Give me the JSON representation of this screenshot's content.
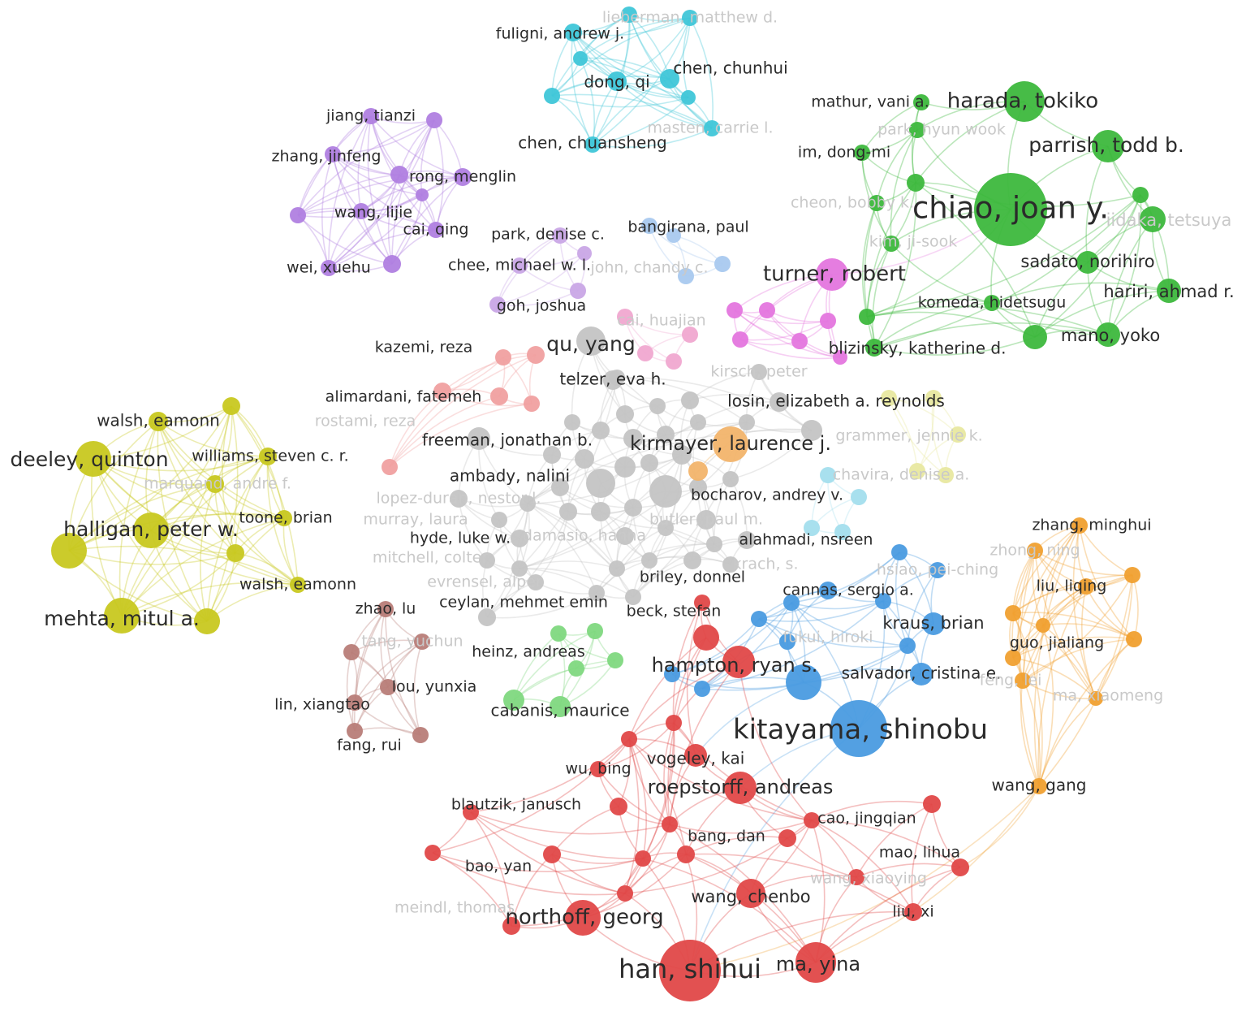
{
  "clusters": [
    {
      "color": "#3fc6d8",
      "nodes": [
        {
          "label": "fuligni, andrew j."
        },
        {
          "label": "dong, qi"
        },
        {
          "label": "chen, chunhui"
        },
        {
          "label": "chen, chuansheng"
        },
        {
          "label": "lieberman, matthew d."
        },
        {
          "label": "masten, carrie l."
        }
      ]
    },
    {
      "color": "#b07fe0",
      "nodes": [
        {
          "label": "jiang, tianzi"
        },
        {
          "label": "zhang, jinfeng"
        },
        {
          "label": "rong, menglin"
        },
        {
          "label": "wang, lijie"
        },
        {
          "label": "cai, qing"
        },
        {
          "label": "wei, xuehu"
        }
      ]
    },
    {
      "color": "#c9a6e6",
      "nodes": [
        {
          "label": "park, denise c."
        },
        {
          "label": "chee, michael w. l."
        },
        {
          "label": "goh, joshua"
        }
      ]
    },
    {
      "color": "#a9c9ef",
      "nodes": [
        {
          "label": "bangirana, paul"
        },
        {
          "label": "john, chandy c."
        }
      ]
    },
    {
      "color": "#e476de",
      "nodes": [
        {
          "label": "turner, robert"
        }
      ]
    },
    {
      "color": "#f0a8d0",
      "nodes": [
        {
          "label": "cai, huajian"
        }
      ]
    },
    {
      "color": "#3db83d",
      "nodes": [
        {
          "label": "mathur, vani a."
        },
        {
          "label": "harada, tokiko"
        },
        {
          "label": "parrish, todd b."
        },
        {
          "label": "im, dong-mi"
        },
        {
          "label": "park, hyun wook"
        },
        {
          "label": "chiao, joan y."
        },
        {
          "label": "cheon, bobby k."
        },
        {
          "label": "kim, ji-sook"
        },
        {
          "label": "iidaka, tetsuya"
        },
        {
          "label": "sadato, norihiro"
        },
        {
          "label": "hariri, ahmad r."
        },
        {
          "label": "komeda, hidetsugu"
        },
        {
          "label": "mano, yoko"
        },
        {
          "label": "blizinsky, katherine d."
        }
      ]
    },
    {
      "color": "#c8c820",
      "nodes": [
        {
          "label": "walsh, eamonn"
        },
        {
          "label": "deeley, quinton"
        },
        {
          "label": "williams, steven c. r."
        },
        {
          "label": "marquand, andre f."
        },
        {
          "label": "toone, brian"
        },
        {
          "label": "halligan, peter w."
        },
        {
          "label": "walsh, eamonn"
        },
        {
          "label": "mehta, mitul a."
        }
      ]
    },
    {
      "color": "#f0a0a0",
      "nodes": [
        {
          "label": "kazemi, reza"
        },
        {
          "label": "alimardani, fatemeh"
        },
        {
          "label": "rostami, reza"
        }
      ]
    },
    {
      "color": "#c4c4c4",
      "nodes": [
        {
          "label": "qu, yang"
        },
        {
          "label": "telzer, eva h."
        },
        {
          "label": "kirsch, peter"
        },
        {
          "label": "losin, elizabeth a. reynolds"
        },
        {
          "label": "freeman, jonathan b."
        },
        {
          "label": "ambady, nalini"
        },
        {
          "label": "bocharov, andrey v."
        },
        {
          "label": "lopez-duran, nestor l."
        },
        {
          "label": "murray, laura"
        },
        {
          "label": "butler, paul m."
        },
        {
          "label": "damasio, hanna"
        },
        {
          "label": "hyde, luke w."
        },
        {
          "label": "alahmadi, nsreen"
        },
        {
          "label": "mitchell, colter"
        },
        {
          "label": "krach, s."
        },
        {
          "label": "briley, donnel"
        },
        {
          "label": "evrensel, alper"
        },
        {
          "label": "ceylan, mehmet emin"
        }
      ]
    },
    {
      "color": "#f2b46b",
      "nodes": [
        {
          "label": "kirmayer, laurence j."
        }
      ]
    },
    {
      "color": "#e8e8a0",
      "nodes": [
        {
          "label": "grammer, jennie k."
        },
        {
          "label": "chavira, denise a."
        }
      ]
    },
    {
      "color": "#4a9be0",
      "nodes": [
        {
          "label": "hsiao, pei-ching"
        },
        {
          "label": "cannas, sergio a."
        },
        {
          "label": "kraus, brian"
        },
        {
          "label": "fukui, hiroki"
        },
        {
          "label": "salvador, cristina e."
        },
        {
          "label": "hampton, ryan s."
        },
        {
          "label": "kitayama, shinobu"
        }
      ]
    },
    {
      "color": "#e04848",
      "nodes": [
        {
          "label": "beck, stefan"
        },
        {
          "label": "vogeley, kai"
        },
        {
          "label": "wu, bing"
        },
        {
          "label": "roepstorff, andreas"
        },
        {
          "label": "blautzik, janusch"
        },
        {
          "label": "bang, dan"
        },
        {
          "label": "cao, jingqian"
        },
        {
          "label": "bao, yan"
        },
        {
          "label": "mao, lihua"
        },
        {
          "label": "wang, xiaoying"
        },
        {
          "label": "wang, chenbo"
        },
        {
          "label": "meindl, thomas"
        },
        {
          "label": "northoff, georg"
        },
        {
          "label": "liu, xi"
        },
        {
          "label": "han, shihui"
        },
        {
          "label": "ma, yina"
        }
      ]
    },
    {
      "color": "#f0a030",
      "nodes": [
        {
          "label": "zhang, minghui"
        },
        {
          "label": "zhong, ning"
        },
        {
          "label": "liu, liqing"
        },
        {
          "label": "guo, jialiang"
        },
        {
          "label": "feng, lei"
        },
        {
          "label": "ma, xiaomeng"
        },
        {
          "label": "wang, gang"
        }
      ]
    },
    {
      "color": "#b87d78",
      "nodes": [
        {
          "label": "zhao, lu"
        },
        {
          "label": "tang, yuchun"
        },
        {
          "label": "lou, yunxia"
        },
        {
          "label": "lin, xiangtao"
        },
        {
          "label": "fang, rui"
        }
      ]
    },
    {
      "color": "#80d880",
      "nodes": [
        {
          "label": "heinz, andreas"
        },
        {
          "label": "cabanis, maurice"
        }
      ]
    }
  ]
}
